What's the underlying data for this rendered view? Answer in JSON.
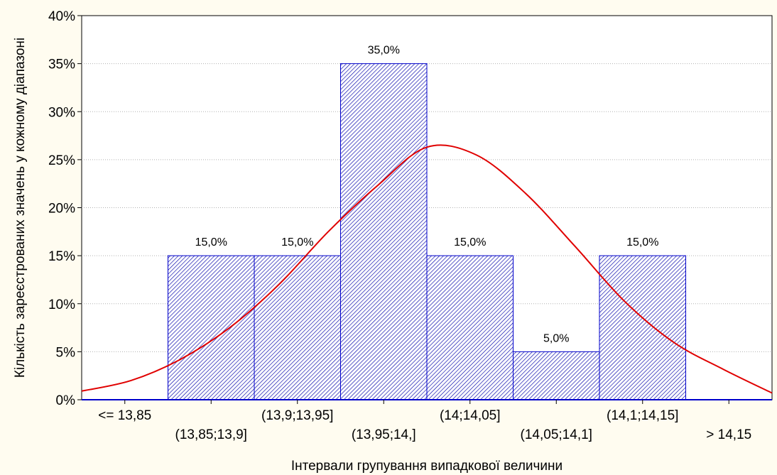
{
  "chart_data": {
    "type": "bar",
    "categories": [
      "<= 13,85",
      "(13,85;13,9]",
      "(13,9;13,95]",
      "(13,95;14,]",
      "(14;14,05]",
      "(14,05;14,1]",
      "(14,1;14,15]",
      "> 14,15"
    ],
    "values": [
      0,
      15,
      15,
      35,
      15,
      5,
      15,
      0
    ],
    "data_labels": [
      "",
      "15,0%",
      "15,0%",
      "35,0%",
      "15,0%",
      "5,0%",
      "15,0%",
      ""
    ],
    "yticks": [
      "0%",
      "5%",
      "10%",
      "15%",
      "20%",
      "25%",
      "30%",
      "35%",
      "40%"
    ],
    "ylim": [
      0,
      40
    ],
    "xlabel": "Інтервали групування випадкової величини",
    "ylabel": "Кількість зареєстрованих значень у кожному діапазоні",
    "grid": true,
    "fitted_curve": {
      "type": "normal",
      "x_category_position": [
        0,
        0.5,
        1,
        1.5,
        2,
        2.5,
        3,
        3.5,
        4,
        4.5,
        5,
        5.5,
        6,
        6.5,
        7
      ],
      "values": [
        0.9,
        2.0,
        4.2,
        7.5,
        12.0,
        17.5,
        22.3,
        26.3,
        25.5,
        21.5,
        16.0,
        10.3,
        6.0,
        3.2,
        0.7
      ]
    },
    "colors": {
      "bar_stroke": "#0000cc",
      "bar_hatch": "#0000aa",
      "curve": "#e00000",
      "background": "#fffcf0",
      "plot_background": "#ffffff",
      "grid": "#b0b0b0"
    }
  }
}
